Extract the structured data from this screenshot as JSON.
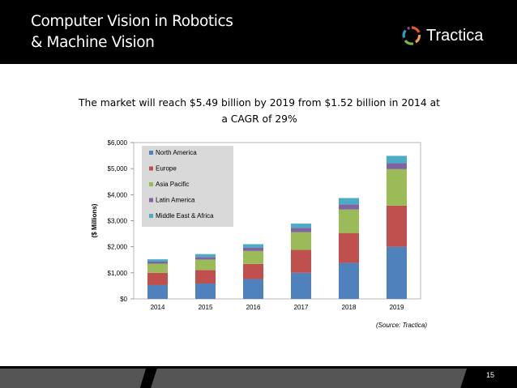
{
  "slide": {
    "title_line1": "Computer Vision in Robotics",
    "title_line2": "& Machine Vision",
    "logo_text": "Tractica",
    "subtitle_line1": "The market will reach $5.49 billion by 2019 from $1.52 billion in 2014  at",
    "subtitle_line2": "a CAGR of 29%",
    "source": "(Source: Tractica)",
    "page_number": "15"
  },
  "chart_data": {
    "type": "bar",
    "stacked": true,
    "categories": [
      "2014",
      "2015",
      "2016",
      "2017",
      "2018",
      "2019"
    ],
    "ylabel": "($ Millions)",
    "ylim": [
      0,
      6000
    ],
    "yticks": [
      "$0",
      "$1,000",
      "$2,000",
      "$3,000",
      "$4,000",
      "$5,000",
      "$6,000"
    ],
    "legend_position": "top-left",
    "grid": false,
    "series": [
      {
        "name": "North America",
        "color": "#4F81BD",
        "values": [
          530,
          590,
          760,
          1000,
          1380,
          2000
        ]
      },
      {
        "name": "Europe",
        "color": "#C0504D",
        "values": [
          470,
          520,
          580,
          880,
          1150,
          1580
        ]
      },
      {
        "name": "Asia Pacific",
        "color": "#9BBB59",
        "values": [
          350,
          400,
          500,
          680,
          900,
          1400
        ]
      },
      {
        "name": "Latin America",
        "color": "#8064A2",
        "values": [
          80,
          100,
          130,
          170,
          200,
          230
        ]
      },
      {
        "name": "Middle East & Africa",
        "color": "#4BACC6",
        "values": [
          90,
          110,
          130,
          160,
          240,
          280
        ]
      }
    ]
  }
}
